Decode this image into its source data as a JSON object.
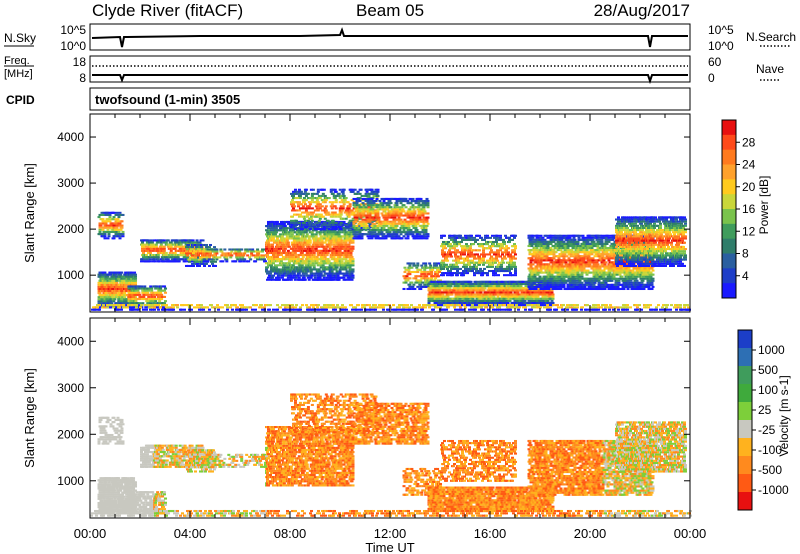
{
  "header": {
    "radar": "Clyde River (fitACF)",
    "beam": "Beam 05",
    "date": "28/Aug/2017"
  },
  "nsky_panel": {
    "left_label": "N.Sky",
    "left_ticks": [
      "10^5",
      "10^0"
    ],
    "right_ticks": [
      "10^5",
      "10^0"
    ],
    "right_label": "N.Search"
  },
  "freq_panel": {
    "left_label_1": "Freq.",
    "left_label_2": "[MHz]",
    "left_ticks": [
      "18",
      "8"
    ],
    "right_ticks": [
      "60",
      "0"
    ],
    "right_label": "Nave"
  },
  "cpid_panel": {
    "label": "CPID",
    "mode_text": "twofsound (1-min) 3505"
  },
  "chart_data": [
    {
      "type": "heatmap",
      "name": "power",
      "ylabel": "Slant Range [km]",
      "yticks": [
        "4000",
        "3000",
        "2000",
        "1000"
      ],
      "xticks": [
        "00:00",
        "04:00",
        "08:00",
        "12:00",
        "16:00",
        "20:00",
        "00:00"
      ],
      "xlabel": "Time UT",
      "colorbar_label": "Power [dB]",
      "colorbar_ticks": [
        "28",
        "24",
        "20",
        "16",
        "12",
        "8",
        "4"
      ],
      "colorbar_colors": [
        "#e81010",
        "#ff4a1a",
        "#ff7a1e",
        "#ffa12c",
        "#ffca1e",
        "#c9d63a",
        "#7ac34c",
        "#3f9c5c",
        "#2f7d6a",
        "#2a5fa0",
        "#1e3ec8",
        "#1a1aff"
      ],
      "ylim": [
        200,
        4500
      ]
    },
    {
      "type": "heatmap",
      "name": "velocity",
      "ylabel": "Slant Range [km]",
      "yticks": [
        "4000",
        "3000",
        "2000",
        "1000"
      ],
      "xticks": [
        "00:00",
        "04:00",
        "08:00",
        "12:00",
        "16:00",
        "20:00",
        "00:00"
      ],
      "xlabel": "Time UT",
      "colorbar_label": "Velocity [m s-1]",
      "colorbar_ticks": [
        "1000",
        "500",
        "100",
        "25",
        "-25",
        "-100",
        "-500",
        "-1000"
      ],
      "colorbar_colors": [
        "#1c3ec8",
        "#2d6fb4",
        "#3f9c5c",
        "#3faa3c",
        "#7dcf3a",
        "#c8c8c0",
        "#ffb21e",
        "#ff8a1e",
        "#ff5a14",
        "#e81010"
      ],
      "ylim": [
        200,
        4500
      ]
    }
  ]
}
